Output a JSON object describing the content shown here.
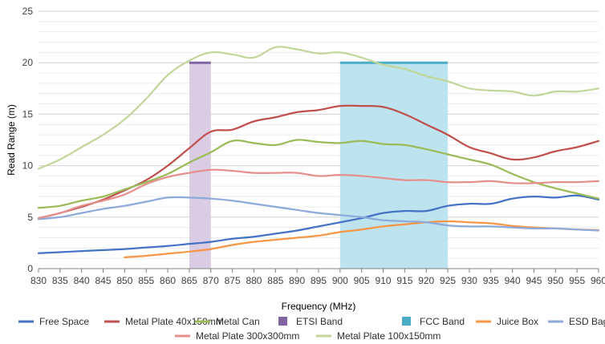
{
  "chart_data": {
    "type": "line",
    "xlabel": "Frequency (MHz)",
    "ylabel": "Read Range (m)",
    "xlim": [
      830,
      960
    ],
    "ylim": [
      0,
      25
    ],
    "x_ticks": [
      830,
      835,
      840,
      845,
      850,
      855,
      860,
      865,
      870,
      875,
      880,
      885,
      890,
      895,
      900,
      905,
      910,
      915,
      920,
      925,
      930,
      935,
      940,
      945,
      950,
      955,
      960
    ],
    "y_ticks": [
      0,
      5,
      10,
      15,
      20,
      25
    ],
    "grid": "horizontal",
    "legend_position": "bottom",
    "bands": [
      {
        "name": "ETSI Band",
        "x_start": 865,
        "x_end": 870,
        "y": 20,
        "color": "#8064A2",
        "fill": "#D9CCE3"
      },
      {
        "name": "FCC Band",
        "x_start": 900,
        "x_end": 925,
        "y": 20,
        "color": "#4BACC6",
        "fill": "#BDE3EE"
      }
    ],
    "series": [
      {
        "name": "Free Space",
        "color": "#4472C4",
        "x": [
          830,
          835,
          840,
          845,
          850,
          855,
          860,
          865,
          870,
          875,
          880,
          885,
          890,
          895,
          900,
          905,
          910,
          915,
          920,
          925,
          930,
          935,
          940,
          945,
          950,
          955,
          960
        ],
        "values": [
          1.5,
          1.6,
          1.7,
          1.8,
          1.9,
          2.05,
          2.2,
          2.4,
          2.6,
          2.9,
          3.1,
          3.4,
          3.7,
          4.1,
          4.5,
          4.9,
          5.4,
          5.6,
          5.6,
          6.1,
          6.3,
          6.3,
          6.8,
          7.0,
          6.9,
          7.1,
          6.7
        ]
      },
      {
        "name": "Metal Plate 40x150mm",
        "color": "#C0504D",
        "x": [
          830,
          835,
          840,
          845,
          850,
          855,
          860,
          865,
          870,
          875,
          880,
          885,
          890,
          895,
          900,
          905,
          910,
          915,
          920,
          925,
          930,
          935,
          940,
          945,
          950,
          955,
          960
        ],
        "values": [
          4.9,
          5.4,
          6.0,
          6.7,
          7.6,
          8.6,
          10.0,
          11.7,
          13.3,
          13.5,
          14.3,
          14.7,
          15.2,
          15.4,
          15.8,
          15.8,
          15.7,
          15.0,
          14.0,
          13.0,
          11.8,
          11.2,
          10.6,
          10.8,
          11.4,
          11.8,
          12.4
        ]
      },
      {
        "name": "Metal Can",
        "color": "#9BBB59",
        "x": [
          830,
          835,
          840,
          845,
          850,
          855,
          860,
          865,
          870,
          875,
          880,
          885,
          890,
          895,
          900,
          905,
          910,
          915,
          920,
          925,
          930,
          935,
          940,
          945,
          950,
          955,
          960
        ],
        "values": [
          5.9,
          6.1,
          6.6,
          7.0,
          7.7,
          8.4,
          9.2,
          10.3,
          11.3,
          12.4,
          12.2,
          12.0,
          12.5,
          12.3,
          12.2,
          12.4,
          12.1,
          12.0,
          11.6,
          11.1,
          10.6,
          10.1,
          9.2,
          8.4,
          7.8,
          7.3,
          6.8
        ]
      },
      {
        "name": "Juice Box",
        "color": "#F79646",
        "x": [
          850,
          855,
          860,
          865,
          870,
          875,
          880,
          885,
          890,
          895,
          900,
          905,
          910,
          915,
          920,
          925,
          930,
          935,
          940,
          945,
          950,
          955,
          960
        ],
        "values": [
          1.1,
          1.25,
          1.45,
          1.65,
          1.9,
          2.3,
          2.6,
          2.8,
          3.0,
          3.2,
          3.55,
          3.8,
          4.1,
          4.3,
          4.5,
          4.6,
          4.5,
          4.4,
          4.15,
          4.0,
          3.9,
          3.8,
          3.75
        ]
      },
      {
        "name": "ESD Bag",
        "color": "#8EAADB",
        "x": [
          830,
          835,
          840,
          845,
          850,
          855,
          860,
          865,
          870,
          875,
          880,
          885,
          890,
          895,
          900,
          905,
          910,
          915,
          920,
          925,
          930,
          935,
          940,
          945,
          950,
          955,
          960
        ],
        "values": [
          4.8,
          5.0,
          5.4,
          5.8,
          6.1,
          6.5,
          6.9,
          6.9,
          6.8,
          6.6,
          6.3,
          6.0,
          5.7,
          5.4,
          5.2,
          5.0,
          4.7,
          4.6,
          4.5,
          4.2,
          4.1,
          4.1,
          4.0,
          3.9,
          3.9,
          3.8,
          3.7
        ]
      },
      {
        "name": "Metal Plate 300x300mm",
        "color": "#E6908E",
        "x": [
          830,
          835,
          840,
          845,
          850,
          855,
          860,
          865,
          870,
          875,
          880,
          885,
          890,
          895,
          900,
          905,
          910,
          915,
          920,
          925,
          930,
          935,
          940,
          945,
          950,
          955,
          960
        ],
        "values": [
          4.9,
          5.4,
          6.1,
          6.6,
          7.2,
          8.2,
          8.9,
          9.3,
          9.6,
          9.5,
          9.3,
          9.3,
          9.3,
          9.0,
          9.1,
          9.0,
          8.8,
          8.6,
          8.6,
          8.4,
          8.4,
          8.5,
          8.3,
          8.3,
          8.4,
          8.4,
          8.5
        ]
      },
      {
        "name": "Metal Plate 100x150mm",
        "color": "#C3D69B",
        "x": [
          830,
          835,
          840,
          845,
          850,
          855,
          860,
          865,
          870,
          875,
          880,
          885,
          890,
          895,
          900,
          905,
          910,
          915,
          920,
          925,
          930,
          935,
          940,
          945,
          950,
          955,
          960
        ],
        "values": [
          9.7,
          10.6,
          11.8,
          13.0,
          14.5,
          16.5,
          18.8,
          20.2,
          21.0,
          20.8,
          20.5,
          21.5,
          21.3,
          20.9,
          21.0,
          20.5,
          19.8,
          19.4,
          18.7,
          18.2,
          17.5,
          17.3,
          17.2,
          16.8,
          17.2,
          17.2,
          17.5
        ]
      }
    ],
    "legend_order": [
      "Free Space",
      "Metal Plate 40x150mm",
      "Metal Can",
      "ETSI Band",
      "FCC Band",
      "Juice Box",
      "ESD Bag",
      "Metal Plate 300x300mm",
      "Metal Plate 100x150mm"
    ]
  }
}
